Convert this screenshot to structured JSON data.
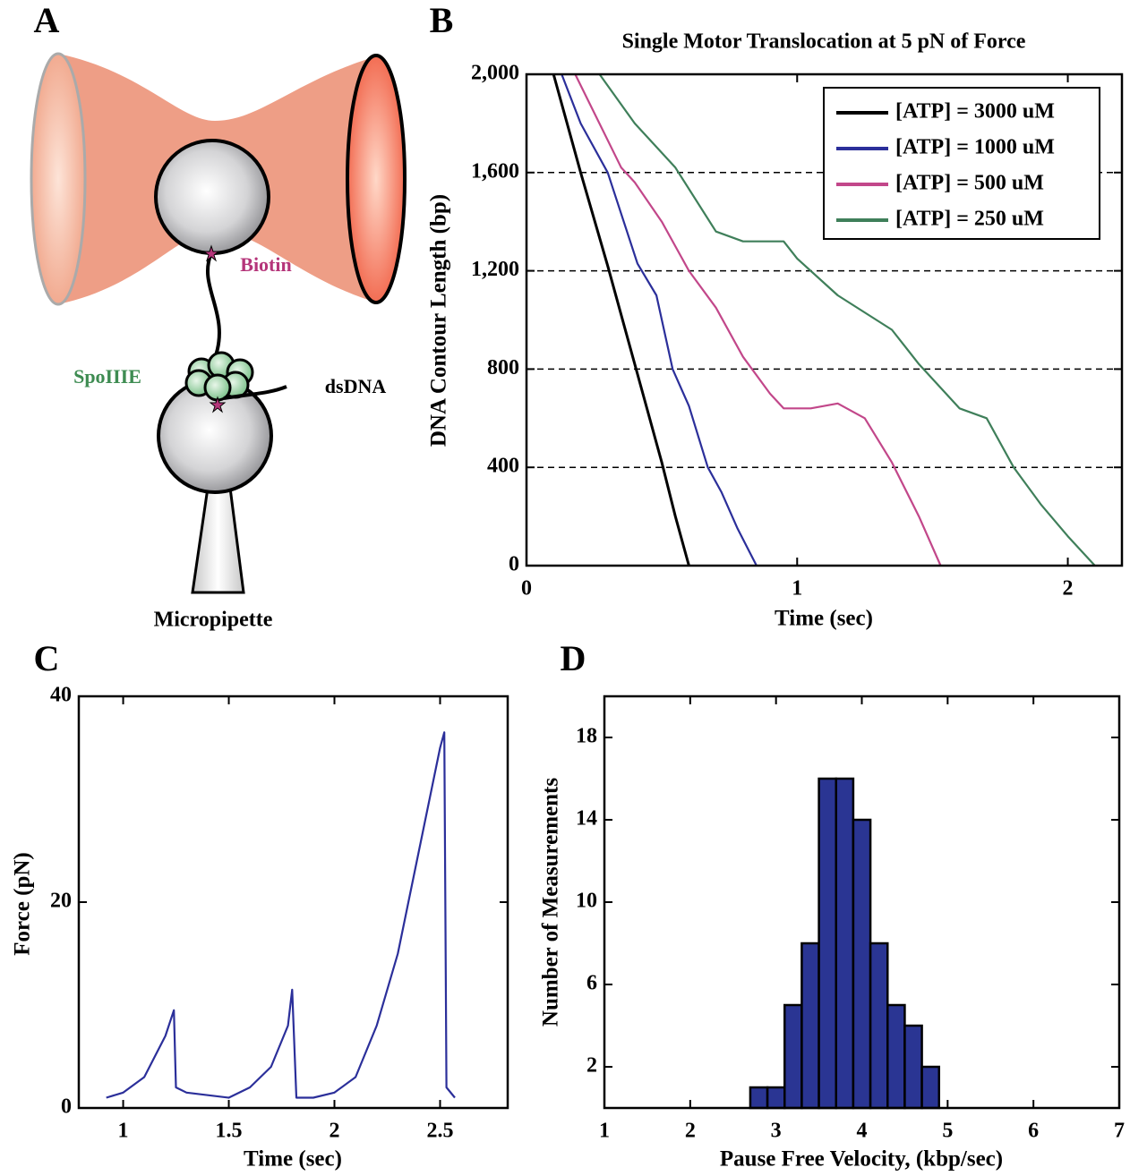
{
  "diagram": {
    "label": "A",
    "biotin": "Biotin",
    "spoiiie": "SpoIIIE",
    "dsdna": "dsDNA",
    "micropipette": "Micropipette"
  },
  "chart_data": [
    {
      "type": "line",
      "label": "B",
      "title": "Single Motor Translocation at 5 pN of Force",
      "xlabel": "Time (sec)",
      "ylabel": "DNA Contour Length (bp)",
      "xlim": [
        0,
        2.2
      ],
      "xticks": [
        0,
        1,
        2
      ],
      "ylim": [
        0,
        2000
      ],
      "yticks": [
        0,
        400,
        800,
        {
          "value": 1200,
          "label": "1,200"
        },
        {
          "value": 1600,
          "label": "1,600"
        },
        {
          "value": 2000,
          "label": "2,000"
        }
      ],
      "grid": true,
      "legend": "upper right",
      "series": [
        {
          "name": "[ATP] = 3000 uM",
          "color": "#000000",
          "x": [
            0.1,
            0.2,
            0.3,
            0.4,
            0.5,
            0.55,
            0.6
          ],
          "values": [
            2000,
            1600,
            1220,
            820,
            420,
            200,
            0
          ]
        },
        {
          "name": "[ATP] = 1000 uM",
          "color": "#2b2f9a",
          "x": [
            0.13,
            0.2,
            0.3,
            0.41,
            0.48,
            0.54,
            0.6,
            0.67,
            0.72,
            0.78,
            0.85
          ],
          "values": [
            2000,
            1800,
            1600,
            1230,
            1100,
            800,
            650,
            400,
            300,
            150,
            0
          ]
        },
        {
          "name": "[ATP] = 500 uM",
          "color": "#c2478a",
          "x": [
            0.18,
            0.35,
            0.4,
            0.5,
            0.6,
            0.7,
            0.8,
            0.9,
            0.95,
            1.05,
            1.15,
            1.25,
            1.35,
            1.45,
            1.53
          ],
          "values": [
            2000,
            1620,
            1560,
            1400,
            1200,
            1050,
            850,
            700,
            640,
            640,
            660,
            600,
            420,
            200,
            0
          ]
        },
        {
          "name": "[ATP] = 250 uM",
          "color": "#3f7f5a",
          "x": [
            0.27,
            0.4,
            0.55,
            0.7,
            0.8,
            0.95,
            1.0,
            1.15,
            1.35,
            1.45,
            1.6,
            1.7,
            1.8,
            1.9,
            2.0,
            2.1
          ],
          "values": [
            2000,
            1800,
            1620,
            1360,
            1320,
            1320,
            1250,
            1100,
            960,
            820,
            640,
            600,
            400,
            250,
            120,
            0
          ]
        }
      ]
    },
    {
      "type": "line",
      "label": "C",
      "xlabel": "Time (sec)",
      "ylabel": "Force (pN)",
      "xlim": [
        0.79,
        2.82
      ],
      "xticks": [
        1,
        1.5,
        2,
        2.5
      ],
      "ylim": [
        0,
        40
      ],
      "yticks": [
        0,
        20,
        40
      ],
      "grid": false,
      "series": [
        {
          "color": "#2b2f9a",
          "x": [
            0.92,
            1.0,
            1.1,
            1.2,
            1.24,
            1.25,
            1.3,
            1.5,
            1.6,
            1.7,
            1.78,
            1.8,
            1.82,
            1.9,
            2.0,
            2.1,
            2.2,
            2.3,
            2.4,
            2.5,
            2.52,
            2.53,
            2.57
          ],
          "values": [
            1,
            1.5,
            3,
            7,
            9.5,
            2,
            1.5,
            1,
            2,
            4,
            8,
            11.5,
            1,
            1,
            1.5,
            3,
            8,
            15,
            25,
            35,
            36.5,
            2,
            1
          ]
        }
      ]
    },
    {
      "type": "histogram",
      "label": "D",
      "xlabel": "Pause Free Velocity, (kbp/sec)",
      "ylabel": "Number of Measurements",
      "xlim": [
        1,
        7
      ],
      "xticks": [
        1,
        2,
        3,
        4,
        5,
        6,
        7
      ],
      "ylim": [
        0,
        20
      ],
      "yticks": [
        2,
        6,
        10,
        14,
        18
      ],
      "grid": false,
      "color": "#2a3593",
      "bins": [
        2.7,
        2.9,
        3.1,
        3.3,
        3.5,
        3.7,
        3.9,
        4.1,
        4.3,
        4.5,
        4.7,
        4.9
      ],
      "values": [
        1,
        1,
        5,
        8,
        16,
        16,
        14,
        8,
        5,
        4,
        2
      ]
    }
  ]
}
